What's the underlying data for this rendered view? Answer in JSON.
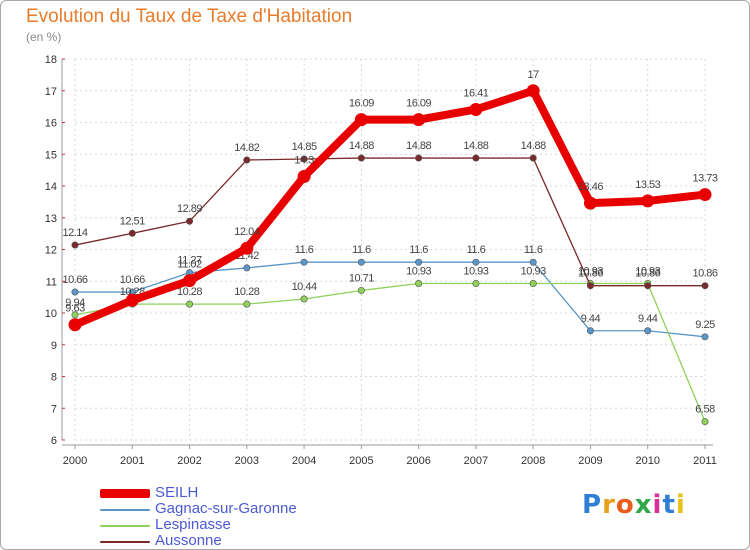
{
  "title": "Evolution du Taux de Taxe d'Habitation",
  "subtitle": "(en %)",
  "logo": {
    "letters": [
      "P",
      "r",
      "o",
      "x",
      "i",
      "t",
      "i"
    ],
    "colors": [
      "#2f7fd6",
      "#e8a01c",
      "#e85d1c",
      "#2fa84a",
      "#d62f9a",
      "#2f7fd6",
      "#e8c01c"
    ]
  },
  "colors": {
    "grid": "#d8d8d8",
    "axis": "#999999",
    "tick_text": "#333333",
    "legend_text": "#4a5ad6"
  },
  "chart_data": {
    "type": "line",
    "x": [
      "2000",
      "2001",
      "2002",
      "2003",
      "2004",
      "2005",
      "2006",
      "2007",
      "2008",
      "2009",
      "2010",
      "2011"
    ],
    "ylim": [
      6,
      18
    ],
    "yticks": [
      6,
      7,
      8,
      9,
      10,
      11,
      12,
      13,
      14,
      15,
      16,
      17,
      18
    ],
    "grid": true,
    "legend_position": "bottom-left",
    "series": [
      {
        "name": "SEILH",
        "color": "#e80000",
        "width": 8,
        "values": [
          9.63,
          10.4,
          11.02,
          12.04,
          14.3,
          16.09,
          16.09,
          16.41,
          17,
          13.46,
          13.53,
          13.73
        ],
        "labels": [
          "9.63",
          "",
          "11.02",
          "12.04",
          "14.3",
          "16.09",
          "16.09",
          "16.41",
          "17",
          "13.46",
          "13.53",
          "13.73"
        ]
      },
      {
        "name": "Gagnac-sur-Garonne",
        "color": "#5b96c8",
        "width": 1.3,
        "values": [
          10.66,
          10.66,
          11.27,
          11.42,
          11.6,
          11.6,
          11.6,
          11.6,
          11.6,
          9.44,
          9.44,
          9.25
        ],
        "labels": [
          "10.66",
          "10.66",
          "11.27",
          "11.42",
          "11.6",
          "11.6",
          "11.6",
          "11.6",
          "11.6",
          "9.44",
          "9.44",
          "9.25"
        ]
      },
      {
        "name": "Lespinasse",
        "color": "#8fd15a",
        "width": 1.3,
        "values": [
          9.94,
          10.28,
          10.28,
          10.28,
          10.44,
          10.71,
          10.93,
          10.93,
          10.93,
          10.93,
          10.93,
          6.58
        ],
        "labels": [
          "9.94",
          "10.28",
          "10.28",
          "10.28",
          "10.44",
          "10.71",
          "10.93",
          "10.93",
          "10.93",
          "10.93",
          "10.93",
          "6.58"
        ]
      },
      {
        "name": "Aussonne",
        "color": "#7a2a2a",
        "width": 1.3,
        "values": [
          12.14,
          12.51,
          12.89,
          14.82,
          14.85,
          14.88,
          14.88,
          14.88,
          14.88,
          10.86,
          10.86,
          10.86
        ],
        "labels": [
          "12.14",
          "12.51",
          "12.89",
          "14.82",
          "14.85",
          "14.88",
          "14.88",
          "14.88",
          "14.88",
          "10.86",
          "10.86",
          "10.86"
        ]
      }
    ]
  }
}
